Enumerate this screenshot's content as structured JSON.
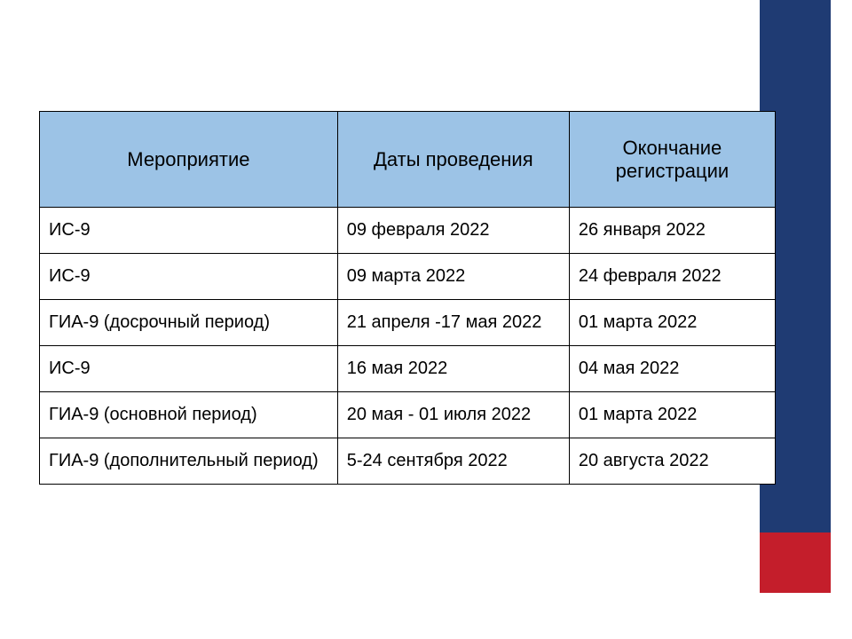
{
  "decor": {
    "blue_bar_color": "#1f3b73",
    "red_square_color": "#c41e2b"
  },
  "table": {
    "type": "table",
    "header_bg": "#9cc3e6",
    "border_color": "#000000",
    "text_color": "#000000",
    "header_fontsize": 22,
    "cell_fontsize": 20,
    "col_widths_pct": [
      40.5,
      31.5,
      28
    ],
    "columns": [
      "Мероприятие",
      "Даты проведения",
      "Окончание регистрации"
    ],
    "rows": [
      [
        "ИС-9",
        "09 февраля 2022",
        "26 января 2022"
      ],
      [
        "ИС-9",
        "09 марта 2022",
        "24 февраля 2022"
      ],
      [
        "ГИА-9 (досрочный период)",
        "21 апреля -17 мая 2022",
        "01 марта 2022"
      ],
      [
        "ИС-9",
        "16 мая 2022",
        "04 мая 2022"
      ],
      [
        "ГИА-9 (основной период)",
        "20 мая - 01 июля 2022",
        "01 марта 2022"
      ],
      [
        "ГИА-9 (дополнительный период)",
        "5-24 сентября 2022",
        "20 августа 2022"
      ]
    ]
  }
}
